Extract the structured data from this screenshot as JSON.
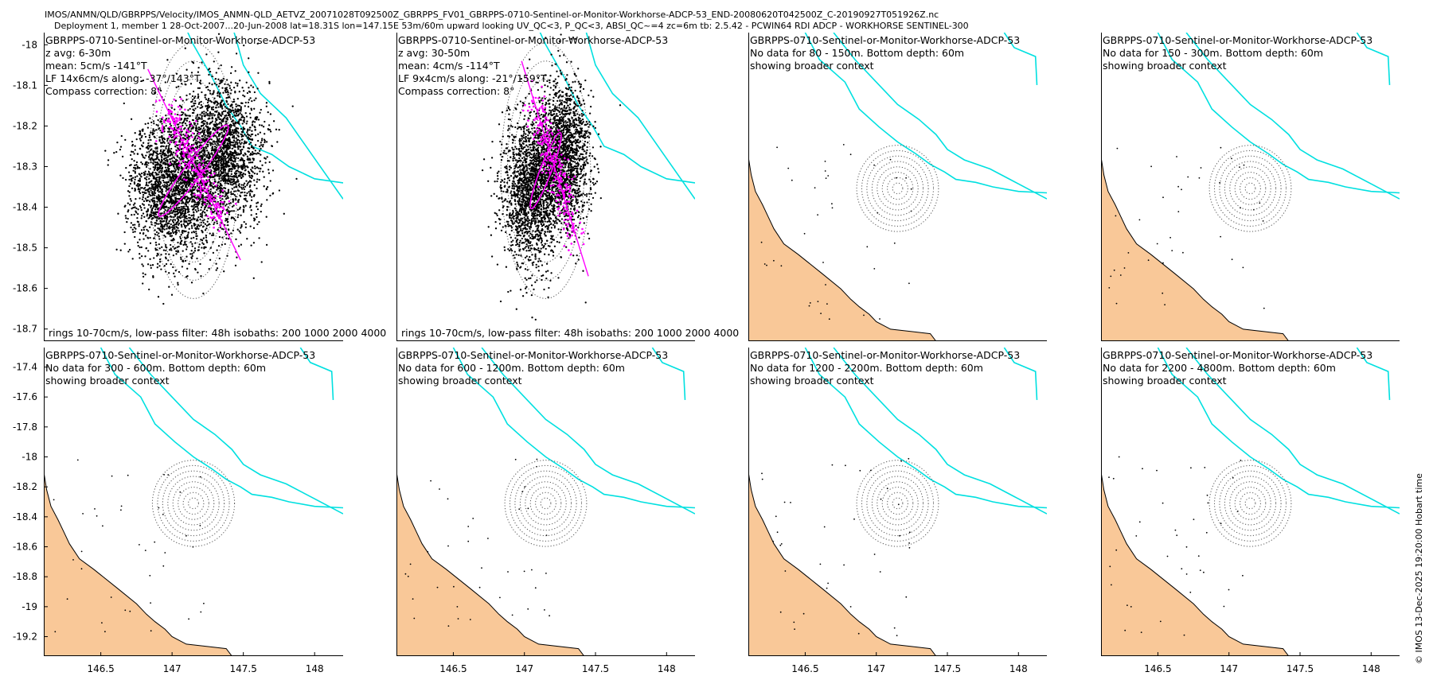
{
  "header": {
    "line1": "IMOS/ANMN/QLD/GBRPPS/Velocity/IMOS_ANMN-QLD_AETVZ_20071028T092500Z_GBRPPS_FV01_GBRPPS-0710-Sentinel-or-Monitor-Workhorse-ADCP-53_END-20080620T042500Z_C-20190927T051926Z.nc",
    "line2": "Deployment 1, member 1 28-Oct-2007...20-Jun-2008 lat=18.31S lon=147.15E 53m/60m upward looking UV_QC<3, P_QC<3, ABSI_QC~=4 zc=6m tb: 2.5.42 - PCWIN64 RDI ADCP - WORKHORSE SENTINEL-300"
  },
  "timestamp": "© IMOS 13-Dec-2025 19:20:00 Hobart time",
  "colors": {
    "land": "#f9c898",
    "isobath": "#00e0e0",
    "scatter": "#000000",
    "lowpass": "#ff00ff",
    "rings": "#555555"
  },
  "chart_data": [
    {
      "type": "scatter",
      "panel": 1,
      "lines": [
        "GBRPPS-0710-Sentinel-or-Monitor-Workhorse-ADCP-53",
        "z avg: 6-30m",
        "mean: 5cm/s -141°T",
        "LF 14x6cm/s along: -37°/143°T",
        "Compass correction: 8°"
      ],
      "footer": "rings 10-70cm/s, low-pass filter: 48h isobaths: 200 1000 2000 4000",
      "center": [
        147.15,
        -18.31
      ],
      "xlim": [
        146.1,
        148.2
      ],
      "ylim": [
        -18.73,
        -17.97
      ],
      "yticks": [
        -18,
        -18.1,
        -18.2,
        -18.3,
        -18.4,
        -18.5,
        -18.6,
        -18.7
      ],
      "ring_spacing_deg": 0.045,
      "ring_count": 7,
      "ellipse": {
        "major_deg": 0.14,
        "minor_deg": 0.06,
        "axis_angle_deg": -37
      },
      "cloud": {
        "sx": 0.32,
        "sy": 0.2,
        "n": 4200,
        "blob1": [
          147.35,
          -18.27
        ],
        "blob2": [
          147.0,
          -18.35
        ]
      },
      "axis_line": [
        [
          146.83,
          -18.06
        ],
        [
          147.48,
          -18.53
        ]
      ]
    },
    {
      "type": "scatter",
      "panel": 2,
      "lines": [
        "GBRPPS-0710-Sentinel-or-Monitor-Workhorse-ADCP-53",
        "z avg: 30-50m",
        "mean: 4cm/s -114°T",
        "LF 9x4cm/s along: -21°/159°T",
        "Compass correction: 8°"
      ],
      "footer": "rings 10-70cm/s, low-pass filter: 48h isobaths: 200 1000 2000 4000",
      "center": [
        147.15,
        -18.31
      ],
      "xlim": [
        146.1,
        148.2
      ],
      "ylim": [
        -18.73,
        -17.97
      ],
      "ring_spacing_deg": 0.045,
      "ring_count": 7,
      "ellipse": {
        "major_deg": 0.1,
        "minor_deg": 0.04,
        "axis_angle_deg": -21
      },
      "cloud": {
        "sx": 0.22,
        "sy": 0.2,
        "n": 3600,
        "blob1": [
          147.27,
          -18.27
        ],
        "blob2": [
          147.05,
          -18.36
        ]
      },
      "axis_line": [
        [
          146.98,
          -18.04
        ],
        [
          147.45,
          -18.57
        ]
      ]
    },
    {
      "type": "map",
      "panel": 3,
      "lines": [
        "GBRPPS-0710-Sentinel-or-Monitor-Workhorse-ADCP-53",
        "No data for 80 - 150m. Bottom depth: 60m",
        "showing broader context"
      ]
    },
    {
      "type": "map",
      "panel": 4,
      "lines": [
        "GBRPPS-0710-Sentinel-or-Monitor-Workhorse-ADCP-53",
        "No data for 150 - 300m. Bottom depth: 60m",
        "showing broader context"
      ]
    },
    {
      "type": "map",
      "panel": 5,
      "lines": [
        "GBRPPS-0710-Sentinel-or-Monitor-Workhorse-ADCP-53",
        "No data for 300 - 600m. Bottom depth: 60m",
        "showing broader context"
      ],
      "yticks": [
        -17.4,
        -17.6,
        -17.8,
        -18,
        -18.2,
        -18.4,
        -18.6,
        -18.8,
        -19,
        -19.2
      ],
      "xticks": [
        146.5,
        147,
        147.5,
        148
      ]
    },
    {
      "type": "map",
      "panel": 6,
      "lines": [
        "GBRPPS-0710-Sentinel-or-Monitor-Workhorse-ADCP-53",
        "No data for 600 - 1200m. Bottom depth: 60m",
        "showing broader context"
      ],
      "xticks": [
        146.5,
        147,
        147.5,
        148
      ]
    },
    {
      "type": "map",
      "panel": 7,
      "lines": [
        "GBRPPS-0710-Sentinel-or-Monitor-Workhorse-ADCP-53",
        "No data for 1200 - 2200m. Bottom depth: 60m",
        "showing broader context"
      ],
      "xticks": [
        146.5,
        147,
        147.5,
        148
      ]
    },
    {
      "type": "map",
      "panel": 8,
      "lines": [
        "GBRPPS-0710-Sentinel-or-Monitor-Workhorse-ADCP-53",
        "No data for 2200 - 4800m. Bottom depth: 60m",
        "showing broader context"
      ],
      "xticks": [
        146.5,
        147,
        147.5,
        148
      ]
    }
  ],
  "map_common": {
    "center": [
      147.15,
      -18.31
    ],
    "xlim": [
      146.1,
      148.2
    ],
    "ylim": [
      -19.33,
      -17.27
    ],
    "ring_spacing_deg": 0.036,
    "ring_count": 8,
    "isobaths": [
      [
        [
          146.5,
          -17.27
        ],
        [
          146.6,
          -17.45
        ],
        [
          146.78,
          -17.6
        ],
        [
          146.88,
          -17.78
        ],
        [
          147.02,
          -17.9
        ],
        [
          147.15,
          -18.0
        ],
        [
          147.28,
          -18.08
        ],
        [
          147.38,
          -18.15
        ],
        [
          147.48,
          -18.2
        ],
        [
          147.56,
          -18.25
        ],
        [
          147.7,
          -18.27
        ],
        [
          147.82,
          -18.3
        ],
        [
          148.0,
          -18.33
        ],
        [
          148.2,
          -18.34
        ]
      ],
      [
        [
          147.9,
          -17.27
        ],
        [
          147.97,
          -17.37
        ],
        [
          148.12,
          -17.43
        ],
        [
          148.13,
          -17.62
        ]
      ],
      [
        [
          146.7,
          -17.27
        ],
        [
          146.85,
          -17.45
        ],
        [
          147.0,
          -17.6
        ],
        [
          147.15,
          -17.75
        ],
        [
          147.3,
          -17.85
        ],
        [
          147.42,
          -17.95
        ],
        [
          147.5,
          -18.05
        ],
        [
          147.62,
          -18.12
        ],
        [
          147.8,
          -18.18
        ],
        [
          148.0,
          -18.28
        ],
        [
          148.2,
          -18.38
        ]
      ]
    ],
    "land": [
      [
        [
          146.1,
          -17.27
        ],
        [
          146.1,
          -19.33
        ],
        [
          147.42,
          -19.33
        ],
        [
          147.38,
          -19.28
        ],
        [
          147.1,
          -19.25
        ],
        [
          147.0,
          -19.2
        ],
        [
          146.95,
          -19.15
        ],
        [
          146.88,
          -19.1
        ],
        [
          146.82,
          -19.05
        ],
        [
          146.75,
          -18.98
        ],
        [
          146.62,
          -18.88
        ],
        [
          146.45,
          -18.75
        ],
        [
          146.35,
          -18.68
        ],
        [
          146.28,
          -18.58
        ],
        [
          146.24,
          -18.5
        ],
        [
          146.2,
          -18.42
        ],
        [
          146.15,
          -18.33
        ],
        [
          146.12,
          -18.22
        ],
        [
          146.1,
          -18.1
        ]
      ],
      [
        [
          146.1,
          -17.27
        ],
        [
          146.16,
          -17.35
        ],
        [
          146.15,
          -17.45
        ],
        [
          146.1,
          -17.5
        ]
      ],
      [
        [
          146.46,
          -18.5
        ],
        [
          146.55,
          -18.47
        ],
        [
          146.6,
          -18.52
        ],
        [
          146.55,
          -18.6
        ],
        [
          146.48,
          -18.57
        ]
      ],
      [
        [
          146.3,
          -18.35
        ],
        [
          146.37,
          -18.36
        ],
        [
          146.35,
          -18.42
        ],
        [
          146.3,
          -18.4
        ]
      ],
      [
        [
          146.5,
          -18.63
        ],
        [
          146.57,
          -18.64
        ],
        [
          146.55,
          -18.7
        ],
        [
          146.5,
          -18.68
        ]
      ],
      [
        [
          146.83,
          -19.12
        ],
        [
          146.88,
          -19.12
        ],
        [
          146.87,
          -19.16
        ],
        [
          146.82,
          -19.15
        ]
      ]
    ],
    "land_vis": [
      [
        [
          146.1,
          -17.27
        ],
        [
          146.1,
          -19.33
        ],
        [
          147.42,
          -19.33
        ],
        [
          147.38,
          -19.28
        ],
        [
          147.1,
          -19.25
        ],
        [
          147.0,
          -19.2
        ],
        [
          146.95,
          -19.15
        ],
        [
          146.88,
          -19.1
        ],
        [
          146.82,
          -19.05
        ],
        [
          146.75,
          -18.98
        ],
        [
          146.62,
          -18.88
        ],
        [
          146.45,
          -18.75
        ],
        [
          146.35,
          -18.68
        ],
        [
          146.28,
          -18.58
        ],
        [
          146.24,
          -18.5
        ],
        [
          146.2,
          -18.42
        ],
        [
          146.15,
          -18.33
        ],
        [
          146.12,
          -18.22
        ],
        [
          146.1,
          -18.1
        ]
      ]
    ]
  }
}
